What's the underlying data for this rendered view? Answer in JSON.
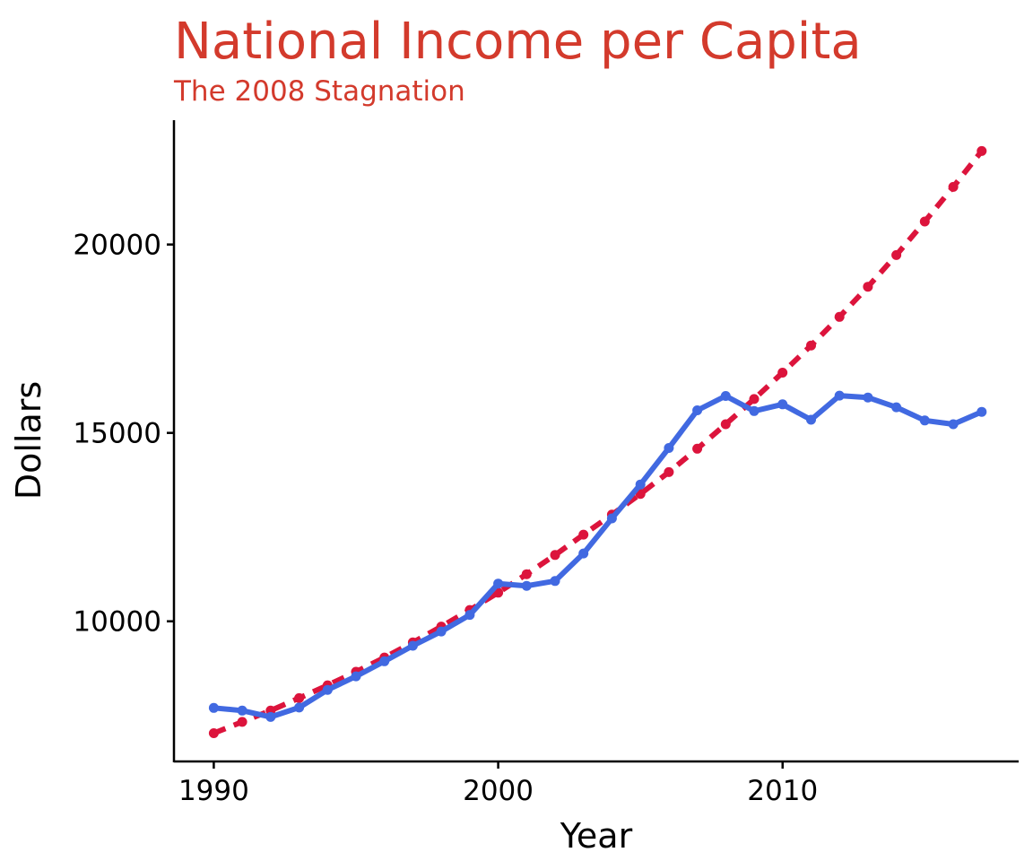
{
  "chart_data": {
    "type": "line",
    "title": "National Income per Capita",
    "subtitle": "The 2008 Stagnation",
    "xlabel": "Year",
    "ylabel": "Dollars",
    "xlim": [
      1988.6,
      2018.3
    ],
    "ylim": [
      6280,
      23300
    ],
    "x_ticks": [
      1990,
      2000,
      2010
    ],
    "y_ticks": [
      10000,
      15000,
      20000
    ],
    "grid": false,
    "legend": "none",
    "x": [
      1990,
      1991,
      1992,
      1993,
      1994,
      1995,
      1996,
      1997,
      1998,
      1999,
      2000,
      2001,
      2002,
      2003,
      2004,
      2005,
      2006,
      2007,
      2008,
      2009,
      2010,
      2011,
      2012,
      2013,
      2014,
      2015,
      2016,
      2017
    ],
    "series": [
      {
        "key": "actual",
        "color": "#4169E1",
        "line_style": "solid",
        "values": [
          7700,
          7630,
          7460,
          7710,
          8180,
          8540,
          8940,
          9350,
          9730,
          10170,
          11000,
          10940,
          11070,
          11800,
          12730,
          13630,
          14600,
          15600,
          15980,
          15580,
          15760,
          15350,
          15990,
          15940,
          15680,
          15330,
          15230,
          15560
        ]
      },
      {
        "key": "trend",
        "color": "#DC143C",
        "line_style": "dashed",
        "values": [
          7030,
          7330,
          7630,
          7960,
          8300,
          8660,
          9040,
          9440,
          9860,
          10300,
          10760,
          11250,
          11760,
          12300,
          12830,
          13380,
          13960,
          14580,
          15230,
          15900,
          16600,
          17320,
          18080,
          18880,
          19720,
          20610,
          21530,
          22480
        ]
      }
    ]
  }
}
